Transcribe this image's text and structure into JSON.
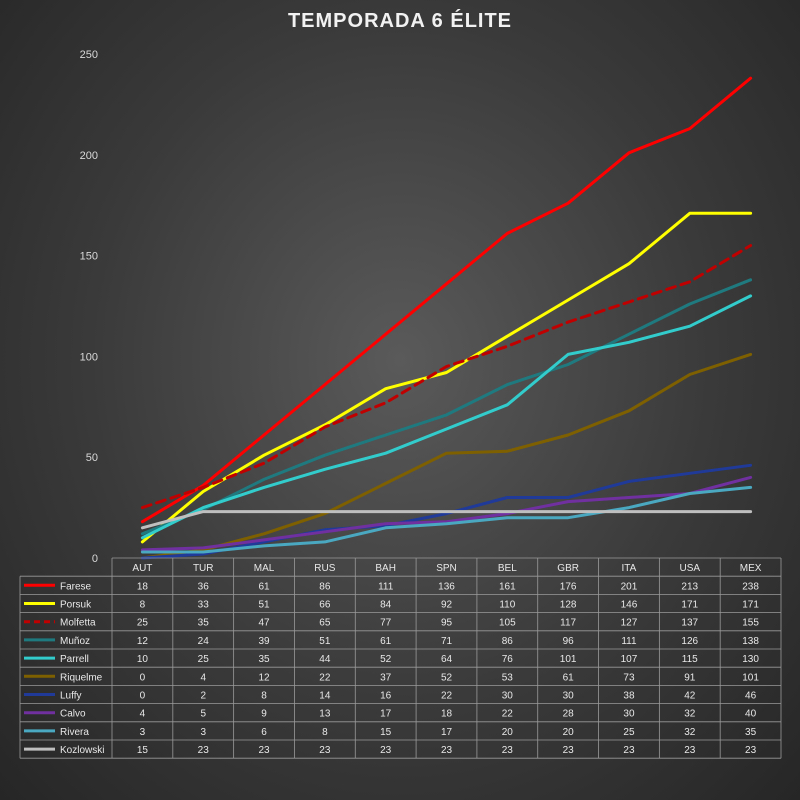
{
  "chart_data": {
    "type": "line",
    "title": "TEMPORADA 6 ÉLITE",
    "categories": [
      "AUT",
      "TUR",
      "MAL",
      "RUS",
      "BAH",
      "SPN",
      "BEL",
      "GBR",
      "ITA",
      "USA",
      "MEX"
    ],
    "ylim": [
      0,
      250
    ],
    "yticks": [
      0,
      50,
      100,
      150,
      200,
      250
    ],
    "grid": false,
    "legend": "data-table-left",
    "series": [
      {
        "name": "Farese",
        "color": "#ff0000",
        "dashed": false,
        "values": [
          18,
          36,
          61,
          86,
          111,
          136,
          161,
          176,
          201,
          213,
          238
        ]
      },
      {
        "name": "Porsuk",
        "color": "#ffff00",
        "dashed": false,
        "values": [
          8,
          33,
          51,
          66,
          84,
          92,
          110,
          128,
          146,
          171,
          171
        ]
      },
      {
        "name": "Molfetta",
        "color": "#c00000",
        "dashed": true,
        "values": [
          25,
          35,
          47,
          65,
          77,
          95,
          105,
          117,
          127,
          137,
          155
        ]
      },
      {
        "name": "Muñoz",
        "color": "#1f7a80",
        "dashed": false,
        "values": [
          12,
          24,
          39,
          51,
          61,
          71,
          86,
          96,
          111,
          126,
          138
        ]
      },
      {
        "name": "Parrell",
        "color": "#33cccc",
        "dashed": false,
        "values": [
          10,
          25,
          35,
          44,
          52,
          64,
          76,
          101,
          107,
          115,
          130
        ]
      },
      {
        "name": "Riquelme",
        "color": "#7f6000",
        "dashed": false,
        "values": [
          0,
          4,
          12,
          22,
          37,
          52,
          53,
          61,
          73,
          91,
          101
        ]
      },
      {
        "name": "Luffy",
        "color": "#1f3a99",
        "dashed": false,
        "values": [
          0,
          2,
          8,
          14,
          16,
          22,
          30,
          30,
          38,
          42,
          46
        ]
      },
      {
        "name": "Calvo",
        "color": "#7030a0",
        "dashed": false,
        "values": [
          4,
          5,
          9,
          13,
          17,
          18,
          22,
          28,
          30,
          32,
          40
        ]
      },
      {
        "name": "Rivera",
        "color": "#4aa8c0",
        "dashed": false,
        "values": [
          3,
          3,
          6,
          8,
          15,
          17,
          20,
          20,
          25,
          32,
          35
        ]
      },
      {
        "name": "Kozlowski",
        "color": "#bfbfbf",
        "dashed": false,
        "values": [
          15,
          23,
          23,
          23,
          23,
          23,
          23,
          23,
          23,
          23,
          23
        ]
      }
    ]
  }
}
